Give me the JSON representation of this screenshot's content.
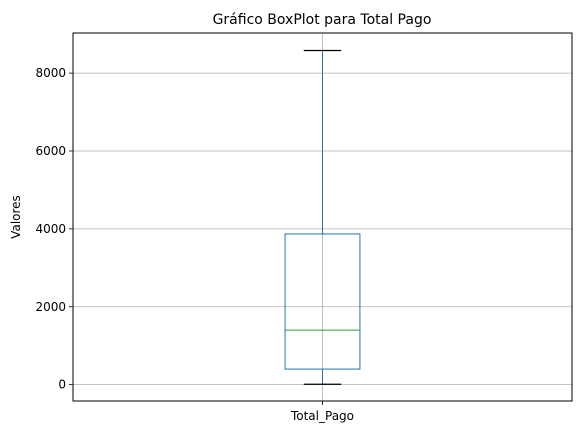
{
  "chart_data": {
    "type": "boxplot",
    "title": "Gráfico BoxPlot para Total Pago",
    "xlabel": "",
    "ylabel": "Valores",
    "categories": [
      "Total_Pago"
    ],
    "boxes": [
      {
        "category": "Total_Pago",
        "whisker_low": 10,
        "q1": 400,
        "median": 1400,
        "q3": 3870,
        "whisker_high": 8580
      }
    ],
    "ylim": [
      -420,
      9030
    ],
    "yticks": [
      0,
      2000,
      4000,
      6000,
      8000
    ],
    "grid": true,
    "colors": {
      "box": "#1f77b4",
      "median": "#2ca02c",
      "caps": "#000000",
      "grid": "#b0b0b0"
    }
  }
}
